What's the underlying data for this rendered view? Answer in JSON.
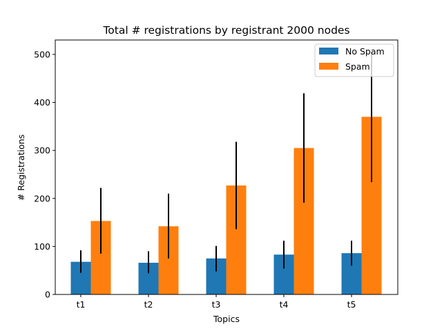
{
  "chart_data": {
    "type": "bar",
    "title": "Total # registrations by registrant 2000 nodes",
    "xlabel": "Topics",
    "ylabel": "# Registrations",
    "categories": [
      "t1",
      "t2",
      "t3",
      "t4",
      "t5"
    ],
    "ylim": [
      0,
      530
    ],
    "yticks": [
      0,
      100,
      200,
      300,
      400,
      500
    ],
    "grid": false,
    "legend_position": "top-right",
    "series": [
      {
        "name": "No Spam",
        "color": "#1f77b4",
        "values": [
          68,
          66,
          75,
          83,
          86
        ],
        "err_low": [
          45,
          44,
          48,
          54,
          60
        ],
        "err_high": [
          92,
          90,
          101,
          112,
          112
        ]
      },
      {
        "name": "Spam",
        "color": "#ff7f0e",
        "values": [
          153,
          142,
          227,
          305,
          370
        ],
        "err_low": [
          85,
          75,
          136,
          191,
          234
        ],
        "err_high": [
          222,
          210,
          318,
          419,
          506
        ]
      }
    ]
  }
}
